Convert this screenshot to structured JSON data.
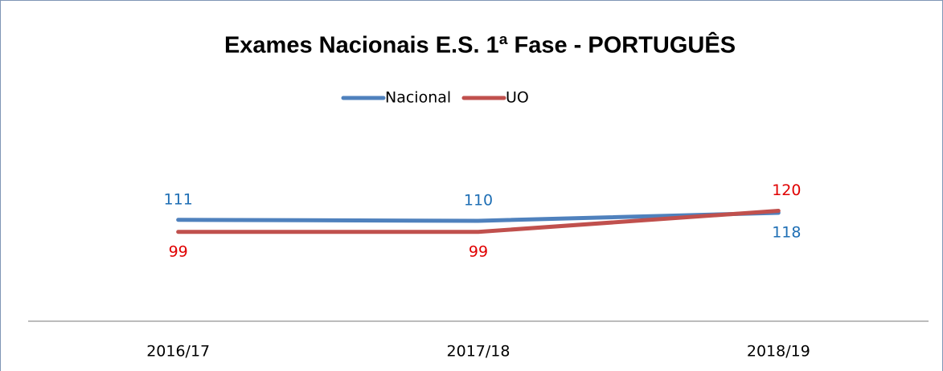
{
  "chart_data": {
    "type": "line",
    "title": "Exames Nacionais E.S. 1ª Fase - PORTUGUÊS",
    "categories": [
      "2016/17",
      "2017/18",
      "2018/19"
    ],
    "series": [
      {
        "name": "Nacional",
        "color": "#4f81bd",
        "label_color": "#1f6fb5",
        "values": [
          111,
          110,
          118
        ]
      },
      {
        "name": "UO",
        "color": "#c0504d",
        "label_color": "#e00000",
        "values": [
          99,
          99,
          120
        ]
      }
    ],
    "ylim": [
      10,
      250
    ]
  }
}
